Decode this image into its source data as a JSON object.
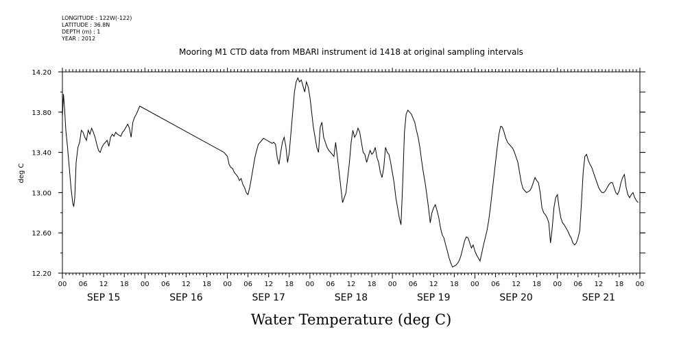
{
  "meta": {
    "longitude": "LONGITUDE : 122W(-122)",
    "latitude": "LATITUDE : 36.8N",
    "depth": "DEPTH (m) : 1",
    "year": "YEAR : 2012"
  },
  "chart_data": {
    "type": "line",
    "title": "Mooring M1 CTD data from MBARI instrument id 1418 at original sampling intervals",
    "xlabel": "Water Temperature (deg C)",
    "ylabel": "deg C",
    "ylim": [
      12.2,
      14.2
    ],
    "yticks": [
      "12.20",
      "12.60",
      "13.00",
      "13.40",
      "13.80",
      "14.20"
    ],
    "xlim_hours": [
      0,
      168
    ],
    "hour_tick_labels": [
      "00",
      "06",
      "12",
      "18"
    ],
    "day_labels": [
      "SEP 15",
      "SEP 16",
      "SEP 17",
      "SEP 18",
      "SEP 19",
      "SEP 20",
      "SEP 21"
    ],
    "grid": false,
    "series": [
      {
        "x": [
          0,
          0.3,
          0.6,
          1.0,
          1.5,
          2.0,
          2.5,
          3.0,
          3.3,
          3.6,
          4.0,
          4.5,
          5.0,
          5.5,
          6.0,
          6.5,
          7.0,
          7.5,
          8.0,
          8.5,
          9.0,
          9.5,
          10.0,
          10.5,
          11.0,
          11.5,
          12.0,
          12.5,
          13.0,
          13.5,
          14.0,
          14.5,
          15.0,
          15.5,
          16.0,
          16.5,
          17.0,
          17.5,
          18.0,
          18.5,
          19.0,
          19.5,
          20.0,
          20.5,
          21.0,
          21.5,
          22.0,
          22.5,
          47.0,
          47.5,
          48.0,
          48.5,
          49.0,
          49.5,
          50.0,
          50.5,
          51.0,
          51.5,
          52.0,
          52.5,
          53.0,
          53.5,
          54.0,
          54.5,
          55.0,
          55.5,
          56.0,
          56.5,
          57.0,
          57.5,
          58.0,
          58.5,
          59.0,
          59.5,
          60.0,
          60.5,
          61.0,
          61.5,
          62.0,
          62.5,
          63.0,
          63.5,
          64.0,
          64.5,
          65.0,
          65.5,
          66.0,
          66.5,
          67.0,
          67.5,
          68.0,
          68.5,
          69.0,
          69.5,
          70.0,
          70.5,
          71.0,
          71.5,
          72.0,
          72.5,
          73.0,
          73.5,
          74.0,
          74.5,
          75.0,
          75.5,
          76.0,
          76.5,
          77.0,
          77.5,
          78.0,
          78.5,
          79.0,
          79.5,
          80.0,
          80.5,
          81.0,
          81.5,
          82.0,
          82.5,
          83.0,
          83.5,
          84.0,
          84.5,
          85.0,
          85.5,
          86.0,
          86.5,
          87.0,
          87.5,
          88.0,
          88.5,
          89.0,
          89.5,
          90.0,
          90.5,
          91.0,
          91.5,
          92.0,
          92.5,
          93.0,
          93.5,
          94.0,
          94.5,
          95.0,
          95.5,
          96.0,
          96.5,
          97.0,
          97.5,
          98.0,
          98.5,
          99.0,
          99.5,
          100.0,
          100.5,
          101.0,
          101.5,
          102.0,
          102.5,
          103.0,
          103.5,
          104.0,
          104.5,
          105.0,
          105.5,
          106.0,
          106.5,
          107.0,
          107.5,
          108.0,
          108.5,
          109.0,
          109.5,
          110.0,
          110.5,
          111.0,
          111.5,
          112.0,
          112.5,
          113.0,
          113.5,
          114.0,
          114.5,
          115.0,
          115.5,
          116.0,
          116.5,
          117.0,
          117.5,
          118.0,
          118.5,
          119.0,
          119.5,
          120.0,
          120.5,
          121.0,
          121.5,
          122.0,
          122.5,
          123.0,
          123.5,
          124.0,
          124.5,
          125.0,
          125.5,
          126.0,
          126.5,
          127.0,
          127.5,
          128.0,
          128.5,
          129.0,
          129.5,
          130.0,
          130.5,
          131.0,
          131.5,
          132.0,
          132.5,
          133.0,
          133.5,
          134.0,
          134.5,
          135.0,
          135.5,
          136.0,
          136.5,
          137.0,
          137.5,
          138.0,
          138.5,
          139.0,
          139.5,
          140.0,
          140.5,
          141.0,
          141.5,
          142.0,
          142.5,
          143.0,
          143.5,
          144.0,
          144.5,
          145.0,
          145.5,
          146.0,
          146.5,
          147.0,
          147.5,
          148.0,
          148.5,
          149.0,
          149.5,
          150.0,
          150.5,
          151.0,
          151.5,
          152.0,
          152.5,
          153.0,
          153.5,
          154.0,
          154.5,
          155.0,
          155.5,
          156.0,
          156.5,
          157.0,
          157.5,
          158.0,
          158.5,
          159.0,
          159.5,
          160.0,
          160.5,
          161.0,
          161.5,
          162.0,
          162.5,
          163.0,
          163.5,
          164.0,
          164.5,
          165.0,
          165.5,
          166.0,
          166.5,
          167.0,
          167.5
        ],
        "y": [
          13.75,
          13.98,
          13.85,
          13.62,
          13.45,
          13.25,
          13.05,
          12.9,
          12.86,
          12.95,
          13.3,
          13.45,
          13.5,
          13.62,
          13.6,
          13.55,
          13.52,
          13.62,
          13.58,
          13.64,
          13.6,
          13.55,
          13.48,
          13.42,
          13.4,
          13.45,
          13.48,
          13.5,
          13.52,
          13.46,
          13.55,
          13.58,
          13.56,
          13.6,
          13.58,
          13.57,
          13.56,
          13.6,
          13.62,
          13.65,
          13.68,
          13.64,
          13.55,
          13.7,
          13.75,
          13.78,
          13.82,
          13.86,
          13.4,
          13.38,
          13.36,
          13.28,
          13.25,
          13.24,
          13.2,
          13.18,
          13.16,
          13.12,
          13.14,
          13.08,
          13.05,
          13.0,
          12.98,
          13.05,
          13.15,
          13.25,
          13.35,
          13.42,
          13.48,
          13.5,
          13.52,
          13.54,
          13.53,
          13.52,
          13.51,
          13.5,
          13.49,
          13.5,
          13.48,
          13.35,
          13.28,
          13.4,
          13.5,
          13.55,
          13.46,
          13.3,
          13.4,
          13.6,
          13.8,
          14.0,
          14.1,
          14.14,
          14.1,
          14.12,
          14.06,
          14.0,
          14.1,
          14.05,
          13.95,
          13.8,
          13.65,
          13.55,
          13.45,
          13.4,
          13.65,
          13.7,
          13.55,
          13.5,
          13.45,
          13.42,
          13.4,
          13.38,
          13.36,
          13.5,
          13.35,
          13.2,
          13.05,
          12.9,
          12.95,
          13.0,
          13.15,
          13.3,
          13.5,
          13.62,
          13.55,
          13.58,
          13.64,
          13.6,
          13.5,
          13.4,
          13.38,
          13.3,
          13.36,
          13.42,
          13.38,
          13.4,
          13.45,
          13.35,
          13.3,
          13.2,
          13.15,
          13.25,
          13.45,
          13.4,
          13.38,
          13.3,
          13.2,
          13.1,
          12.95,
          12.85,
          12.75,
          12.68,
          13.1,
          13.6,
          13.78,
          13.82,
          13.8,
          13.78,
          13.74,
          13.7,
          13.62,
          13.55,
          13.45,
          13.32,
          13.2,
          13.1,
          12.98,
          12.85,
          12.7,
          12.8,
          12.85,
          12.88,
          12.82,
          12.75,
          12.65,
          12.58,
          12.55,
          12.48,
          12.42,
          12.35,
          12.3,
          12.26,
          12.27,
          12.28,
          12.3,
          12.33,
          12.38,
          12.45,
          12.52,
          12.56,
          12.55,
          12.5,
          12.45,
          12.48,
          12.42,
          12.38,
          12.35,
          12.32,
          12.4,
          12.48,
          12.55,
          12.62,
          12.72,
          12.85,
          13.0,
          13.15,
          13.3,
          13.45,
          13.58,
          13.66,
          13.65,
          13.6,
          13.54,
          13.5,
          13.48,
          13.46,
          13.44,
          13.4,
          13.35,
          13.3,
          13.2,
          13.1,
          13.04,
          13.02,
          13.0,
          13.01,
          13.02,
          13.05,
          13.1,
          13.15,
          13.12,
          13.1,
          13.0,
          12.85,
          12.8,
          12.78,
          12.75,
          12.7,
          12.5,
          12.65,
          12.85,
          12.95,
          12.98,
          12.85,
          12.75,
          12.7,
          12.68,
          12.65,
          12.62,
          12.58,
          12.55,
          12.5,
          12.48,
          12.5,
          12.55,
          12.62,
          12.9,
          13.2,
          13.36,
          13.38,
          13.32,
          13.28,
          13.25,
          13.2,
          13.15,
          13.1,
          13.05,
          13.02,
          13.0,
          13.0,
          13.02,
          13.05,
          13.08,
          13.1,
          13.1,
          13.05,
          13.0,
          12.98,
          13.02,
          13.1,
          13.15,
          13.18,
          13.05,
          12.98,
          12.95,
          12.98,
          13.0,
          12.95,
          12.92,
          12.9
        ]
      }
    ]
  }
}
